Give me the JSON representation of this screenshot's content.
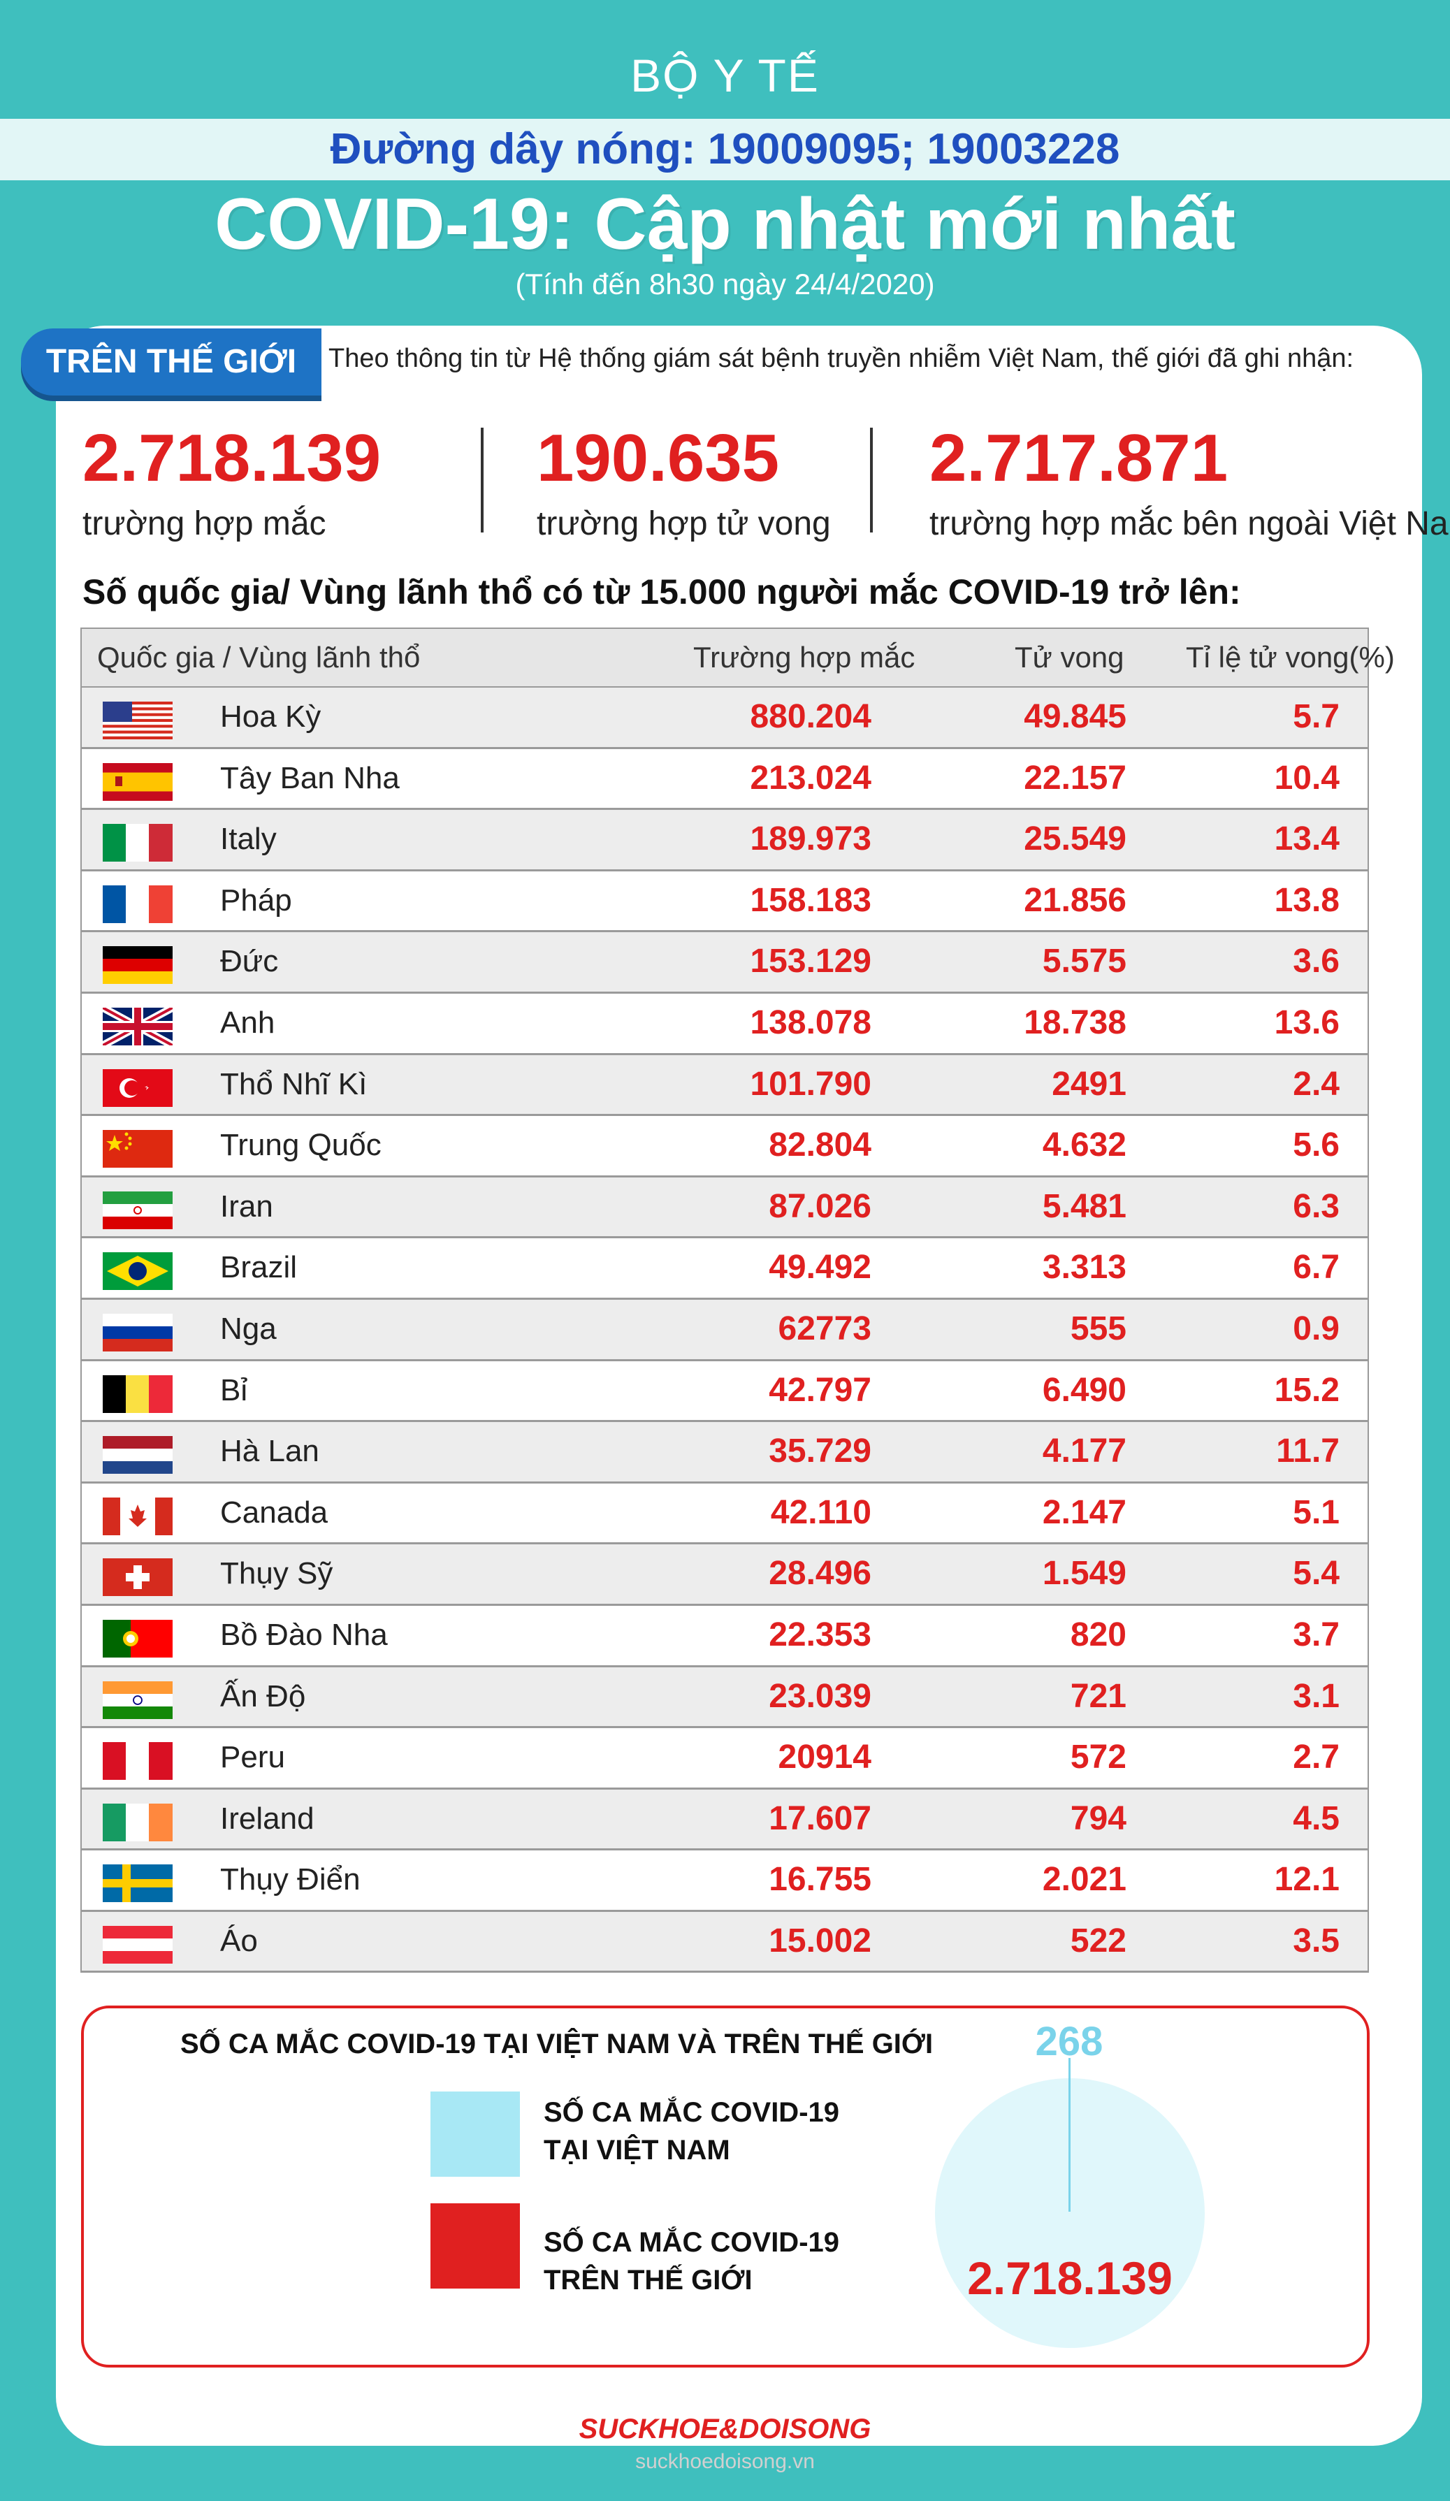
{
  "header": {
    "org": "BỘ Y TẾ",
    "hotline": "Đường dây nóng: 19009095; 19003228",
    "title": "COVID-19: Cập nhật mới nhất",
    "subtitle": "(Tính đến 8h30 ngày 24/4/2020)"
  },
  "world": {
    "tag": "TRÊN THẾ GIỚI",
    "intro": "Theo thông tin từ Hệ thống giám sát bệnh truyền nhiễm Việt Nam, thế giới đã ghi nhận:",
    "stats": [
      {
        "value": "2.718.139",
        "label": "trường hợp mắc"
      },
      {
        "value": "190.635",
        "label": "trường hợp tử vong"
      },
      {
        "value": "2.717.871",
        "label": "trường hợp  mắc bên ngoài Việt Nam"
      }
    ]
  },
  "table": {
    "heading": "Số quốc gia/ Vùng lãnh thổ có từ 15.000 người  mắc COVID-19 trở lên:",
    "columns": [
      "Quốc gia / Vùng lãnh thổ",
      "Trường hợp mắc",
      "Tử vong",
      "Tỉ lệ tử vong(%)"
    ],
    "rows": [
      {
        "flag": "usa-flag",
        "country": "Hoa Kỳ",
        "cases": "880.204",
        "deaths": "49.845",
        "rate": "5.7"
      },
      {
        "flag": "spain-flag",
        "country": "Tây Ban Nha",
        "cases": "213.024",
        "deaths": "22.157",
        "rate": "10.4"
      },
      {
        "flag": "italy-flag",
        "country": "Italy",
        "cases": "189.973",
        "deaths": "25.549",
        "rate": "13.4"
      },
      {
        "flag": "france-flag",
        "country": "Pháp",
        "cases": "158.183",
        "deaths": "21.856",
        "rate": "13.8"
      },
      {
        "flag": "germany-flag",
        "country": "Đức",
        "cases": "153.129",
        "deaths": "5.575",
        "rate": "3.6"
      },
      {
        "flag": "uk-flag",
        "country": "Anh",
        "cases": "138.078",
        "deaths": "18.738",
        "rate": "13.6"
      },
      {
        "flag": "turkey-flag",
        "country": "Thổ Nhĩ Kì",
        "cases": "101.790",
        "deaths": "2491",
        "rate": "2.4"
      },
      {
        "flag": "china-flag",
        "country": "Trung Quốc",
        "cases": "82.804",
        "deaths": "4.632",
        "rate": "5.6"
      },
      {
        "flag": "iran-flag",
        "country": "Iran",
        "cases": "87.026",
        "deaths": "5.481",
        "rate": "6.3"
      },
      {
        "flag": "brazil-flag",
        "country": "Brazil",
        "cases": "49.492",
        "deaths": "3.313",
        "rate": "6.7"
      },
      {
        "flag": "russia-flag",
        "country": "Nga",
        "cases": "62773",
        "deaths": "555",
        "rate": "0.9"
      },
      {
        "flag": "belgium-flag",
        "country": "Bỉ",
        "cases": "42.797",
        "deaths": "6.490",
        "rate": "15.2"
      },
      {
        "flag": "netherlands-flag",
        "country": "Hà Lan",
        "cases": "35.729",
        "deaths": "4.177",
        "rate": "11.7"
      },
      {
        "flag": "canada-flag",
        "country": "Canada",
        "cases": "42.110",
        "deaths": "2.147",
        "rate": "5.1"
      },
      {
        "flag": "switzerland-flag",
        "country": "Thụy Sỹ",
        "cases": "28.496",
        "deaths": "1.549",
        "rate": "5.4"
      },
      {
        "flag": "portugal-flag",
        "country": "Bồ Đào Nha",
        "cases": "22.353",
        "deaths": "820",
        "rate": "3.7"
      },
      {
        "flag": "india-flag",
        "country": "Ấn Độ",
        "cases": "23.039",
        "deaths": "721",
        "rate": "3.1"
      },
      {
        "flag": "peru-flag",
        "country": "Peru",
        "cases": "20914",
        "deaths": "572",
        "rate": "2.7"
      },
      {
        "flag": "ireland-flag",
        "country": "Ireland",
        "cases": "17.607",
        "deaths": "794",
        "rate": "4.5"
      },
      {
        "flag": "sweden-flag",
        "country": "Thụy Điển",
        "cases": "16.755",
        "deaths": "2.021",
        "rate": "12.1"
      },
      {
        "flag": "austria-flag",
        "country": "Áo",
        "cases": "15.002",
        "deaths": "522",
        "rate": "3.5"
      }
    ]
  },
  "comparison": {
    "title": "SỐ CA MẮC COVID-19 TẠI VIỆT NAM VÀ TRÊN THẾ GIỚI",
    "legend": [
      {
        "line1": "SỐ CA MẮC COVID-19",
        "line2": "TẠI VIỆT NAM",
        "color": "#a8e8f5"
      },
      {
        "line1": "SỐ CA MẮC COVID-19",
        "line2": "TRÊN THẾ GIỚI",
        "color": "#e02020"
      }
    ],
    "vietnam_value": "268",
    "world_value": "2.718.139"
  },
  "footer": {
    "logo": "SUCKHOE&DOISONG",
    "url": "suckhoedoisong.vn"
  }
}
